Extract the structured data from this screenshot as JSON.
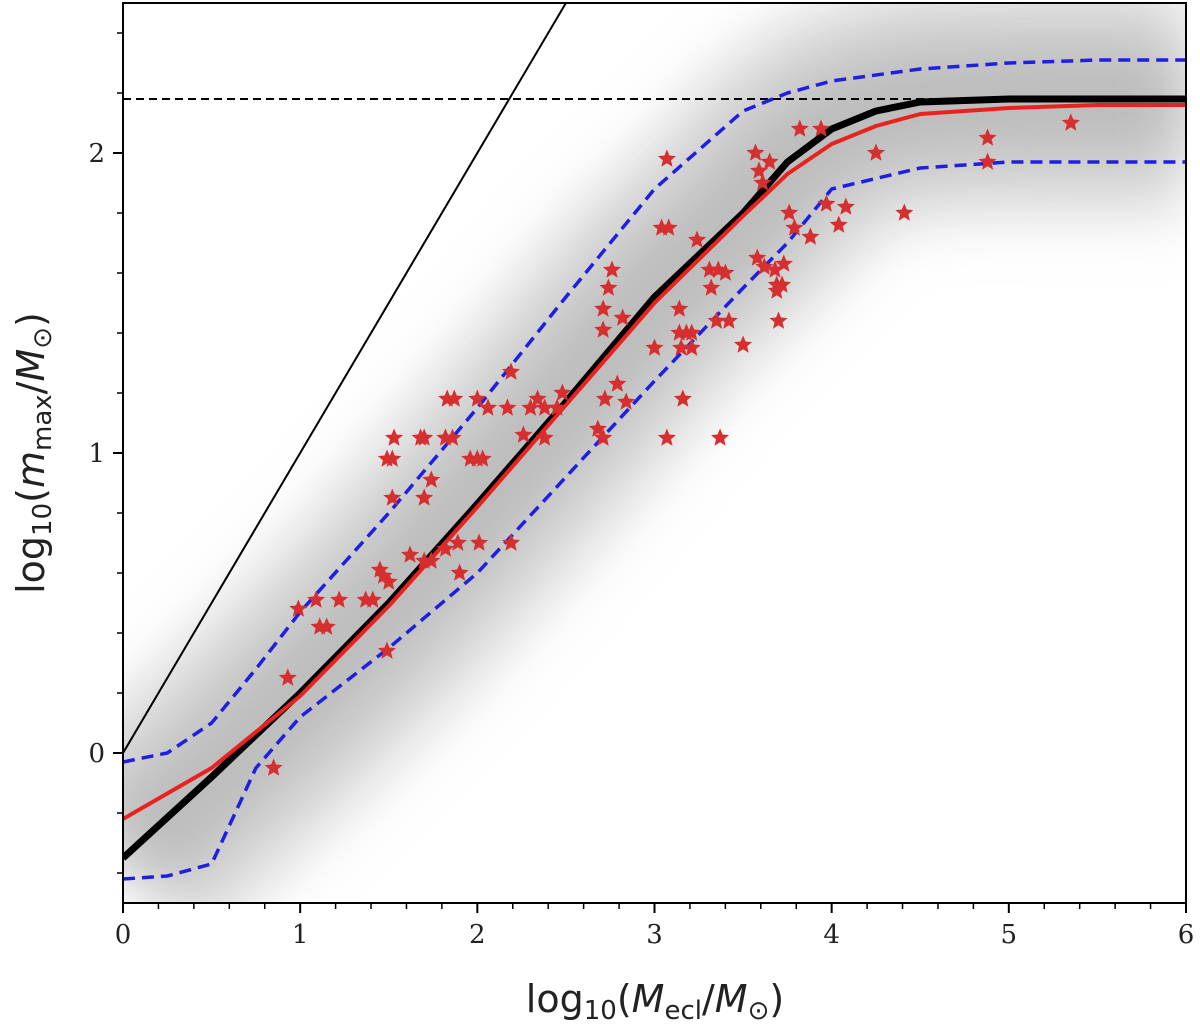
{
  "chart_data": {
    "type": "scatter",
    "xlabel_parts": [
      "log",
      "10",
      "(",
      "M",
      "ecl",
      "/",
      "M",
      "⊙",
      ")"
    ],
    "ylabel_parts": [
      "log",
      "10",
      "(",
      "m",
      "max",
      "/",
      "M",
      "⊙",
      ")"
    ],
    "xlim": [
      0,
      6
    ],
    "ylim": [
      -0.5,
      2.5
    ],
    "xticks": [
      0,
      1,
      2,
      3,
      4,
      5,
      6
    ],
    "yticks": [
      0,
      1,
      2
    ],
    "x_minor_ticks": [
      0.2,
      0.4,
      0.6,
      0.8,
      1.2,
      1.4,
      1.6,
      1.8,
      2.2,
      2.4,
      2.6,
      2.8,
      3.2,
      3.4,
      3.6,
      3.8,
      4.2,
      4.4,
      4.6,
      4.8,
      5.2,
      5.4,
      5.6,
      5.8
    ],
    "y_minor_ticks": [
      -0.4,
      -0.2,
      0.2,
      0.4,
      0.6,
      0.8,
      1.2,
      1.4,
      1.6,
      1.8,
      2.2,
      2.4
    ],
    "reference_lines": [
      {
        "kind": "diagonal",
        "color": "#000000",
        "x": [
          0,
          2.5
        ],
        "y": [
          0,
          2.5
        ]
      },
      {
        "kind": "horizontal",
        "color": "#000000",
        "dashed": true,
        "y": 2.18
      }
    ],
    "curves": [
      {
        "color": "#000000",
        "width": 7,
        "dashed": false,
        "band": true,
        "x": [
          0,
          0.5,
          1,
          1.5,
          2,
          2.5,
          3,
          3.5,
          3.75,
          4,
          4.25,
          4.5,
          5,
          5.5,
          6
        ],
        "y": [
          -0.35,
          -0.08,
          0.2,
          0.5,
          0.83,
          1.17,
          1.52,
          1.8,
          1.97,
          2.08,
          2.14,
          2.17,
          2.18,
          2.18,
          2.18
        ]
      },
      {
        "color": "#e8231f",
        "width": 4,
        "dashed": false,
        "x": [
          0,
          0.5,
          1,
          1.5,
          2,
          2.5,
          3,
          3.5,
          3.75,
          4,
          4.25,
          4.5,
          5,
          5.5,
          6
        ],
        "y": [
          -0.22,
          -0.05,
          0.19,
          0.49,
          0.82,
          1.16,
          1.5,
          1.79,
          1.93,
          2.03,
          2.09,
          2.13,
          2.15,
          2.16,
          2.16
        ]
      },
      {
        "color": "#1f1fe0",
        "width": 3.5,
        "dashed": true,
        "x": [
          0,
          0.25,
          0.5,
          0.75,
          1,
          1.5,
          2,
          2.5,
          3,
          3.5,
          3.75,
          4,
          4.5,
          5,
          5.5,
          6
        ],
        "y": [
          -0.03,
          0.0,
          0.1,
          0.28,
          0.47,
          0.8,
          1.15,
          1.52,
          1.88,
          2.14,
          2.2,
          2.24,
          2.28,
          2.3,
          2.31,
          2.31
        ]
      },
      {
        "color": "#1f1fe0",
        "width": 3.5,
        "dashed": true,
        "x": [
          0,
          0.25,
          0.5,
          0.75,
          1,
          1.5,
          2,
          2.5,
          3,
          3.5,
          3.75,
          4,
          4.5,
          5,
          5.5,
          6
        ],
        "y": [
          -0.42,
          -0.41,
          -0.37,
          -0.05,
          0.12,
          0.35,
          0.6,
          0.92,
          1.24,
          1.55,
          1.7,
          1.88,
          1.95,
          1.97,
          1.97,
          1.97
        ]
      }
    ],
    "points": {
      "color": "#d62f2f",
      "x": [
        0.85,
        0.93,
        0.99,
        1.09,
        1.11,
        1.15,
        1.22,
        1.37,
        1.41,
        1.45,
        1.47,
        1.5,
        1.49,
        1.49,
        1.52,
        1.53,
        1.52,
        1.7,
        1.74,
        1.62,
        1.7,
        1.74,
        1.82,
        1.68,
        1.7,
        1.83,
        1.87,
        1.82,
        1.86,
        1.89,
        1.9,
        1.96,
        2.0,
        2.03,
        2.01,
        2.06,
        2.0,
        2.17,
        2.19,
        2.19,
        2.26,
        2.3,
        2.34,
        2.38,
        2.38,
        2.45,
        2.48,
        2.68,
        2.71,
        2.72,
        2.79,
        2.84,
        2.71,
        2.74,
        2.76,
        2.71,
        2.82,
        3.0,
        3.04,
        3.08,
        3.07,
        3.07,
        3.14,
        3.14,
        3.18,
        3.21,
        3.15,
        3.21,
        3.16,
        3.24,
        3.32,
        3.31,
        3.36,
        3.4,
        3.35,
        3.42,
        3.37,
        3.5,
        3.58,
        3.62,
        3.68,
        3.69,
        3.69,
        3.73,
        3.72,
        3.7,
        3.59,
        3.57,
        3.61,
        3.65,
        3.76,
        3.79,
        3.88,
        3.82,
        3.94,
        3.97,
        4.04,
        4.08,
        4.25,
        4.41,
        4.88,
        4.88,
        5.35
      ],
      "y": [
        -0.05,
        0.25,
        0.48,
        0.51,
        0.42,
        0.42,
        0.51,
        0.51,
        0.51,
        0.61,
        0.59,
        0.57,
        0.34,
        0.98,
        0.98,
        1.05,
        0.85,
        0.85,
        0.91,
        0.66,
        0.64,
        0.64,
        0.68,
        1.05,
        1.05,
        1.18,
        1.18,
        1.05,
        1.05,
        0.7,
        0.6,
        0.98,
        0.98,
        0.98,
        0.7,
        1.15,
        1.18,
        1.15,
        1.27,
        0.7,
        1.06,
        1.15,
        1.18,
        1.15,
        1.05,
        1.15,
        1.2,
        1.08,
        1.05,
        1.18,
        1.23,
        1.17,
        1.48,
        1.55,
        1.61,
        1.41,
        1.45,
        1.35,
        1.75,
        1.75,
        1.98,
        1.05,
        1.48,
        1.4,
        1.4,
        1.4,
        1.35,
        1.35,
        1.18,
        1.71,
        1.55,
        1.61,
        1.61,
        1.6,
        1.44,
        1.44,
        1.05,
        1.36,
        1.65,
        1.62,
        1.61,
        1.56,
        1.54,
        1.63,
        1.56,
        1.44,
        1.94,
        2.0,
        1.9,
        1.97,
        1.8,
        1.75,
        1.72,
        2.08,
        2.08,
        1.83,
        1.76,
        1.82,
        2.0,
        1.8,
        2.05,
        1.97,
        2.1
      ]
    }
  }
}
